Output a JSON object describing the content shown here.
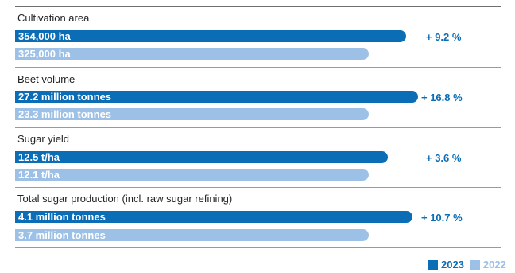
{
  "chart_data": {
    "type": "bar",
    "orientation": "horizontal",
    "categories": [
      "Cultivation area",
      "Beet volume",
      "Sugar yield",
      "Total sugar production (incl. raw sugar refining)"
    ],
    "series": [
      {
        "name": "2023",
        "values": [
          354000,
          27.2,
          12.5,
          4.1
        ],
        "labels": [
          "354,000 ha",
          "27.2 million tonnes",
          "12.5 t/ha",
          "4.1 million tonnes"
        ],
        "color": "#0a6db5"
      },
      {
        "name": "2022",
        "values": [
          325000,
          23.3,
          12.1,
          3.7
        ],
        "labels": [
          "325,000 ha",
          "23.3 million tonnes",
          "12.1 t/ha",
          "3.7 million tonnes"
        ],
        "color": "#9cc0e6"
      }
    ],
    "changes": [
      "+ 9.2 %",
      "+ 16.8 %",
      "+ 3.6 %",
      "+ 10.7 %"
    ],
    "legend": [
      "2023",
      "2022"
    ],
    "legend_position": "bottom-right"
  }
}
